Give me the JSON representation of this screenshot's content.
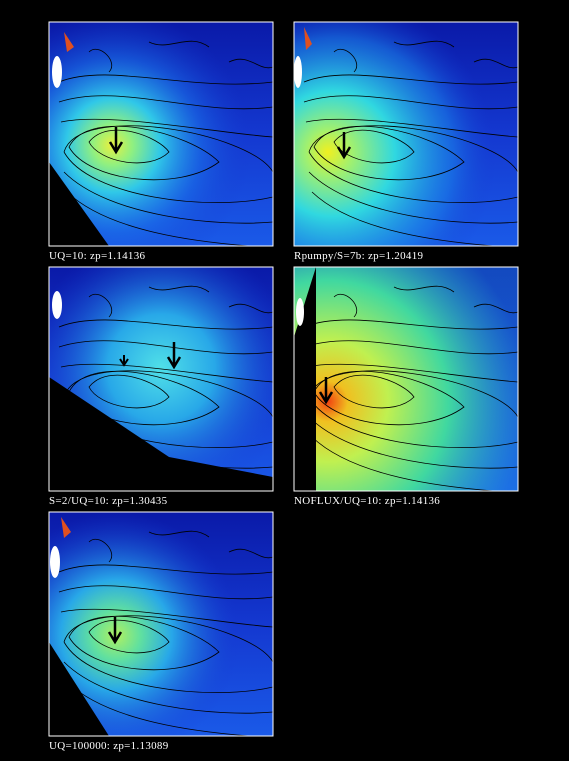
{
  "panels": [
    {
      "caption": "UQ=10: zp=1.14136"
    },
    {
      "caption": "Rpumpy/S=7b: zp=1.20419"
    },
    {
      "caption": "S=2/UQ=10: zp=1.30435"
    },
    {
      "caption": "NOFLUX/UQ=10: zp=1.14136"
    },
    {
      "caption": "UQ=100000: zp=1.13089"
    }
  ]
}
